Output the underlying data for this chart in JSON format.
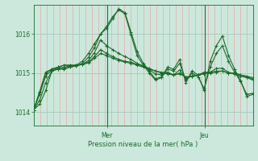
{
  "title": "Pression niveau de la mer( hPa )",
  "bg_color": "#cce8dc",
  "plot_bg_color": "#cce8dc",
  "line_color": "#1a6b2a",
  "grid_color_h": "#a8c8bc",
  "grid_color_v": "#e8a8a8",
  "day_line_color": "#2a6a3a",
  "ylim": [
    1013.65,
    1016.75
  ],
  "yticks": [
    1014,
    1015,
    1016
  ],
  "day_positions": [
    0.335,
    0.78
  ],
  "day_labels": [
    "Mer",
    "Jeu"
  ],
  "n_points": 37,
  "series": [
    [
      1014.05,
      1014.2,
      1014.55,
      1015.05,
      1015.1,
      1015.1,
      1015.15,
      1015.2,
      1015.3,
      1015.5,
      1015.75,
      1016.0,
      1016.15,
      1016.4,
      1016.65,
      1016.55,
      1016.05,
      1015.55,
      1015.25,
      1015.05,
      1014.85,
      1014.9,
      1015.15,
      1015.1,
      1015.35,
      1014.75,
      1015.05,
      1014.95,
      1014.55,
      1015.3,
      1015.7,
      1015.95,
      1015.45,
      1015.1,
      1014.8,
      1014.4,
      1014.45
    ],
    [
      1014.05,
      1014.3,
      1014.75,
      1015.05,
      1015.1,
      1015.12,
      1015.15,
      1015.18,
      1015.25,
      1015.4,
      1015.65,
      1016.0,
      1016.2,
      1016.45,
      1016.62,
      1016.52,
      1015.98,
      1015.45,
      1015.2,
      1015.0,
      1014.82,
      1014.88,
      1015.1,
      1015.05,
      1015.25,
      1014.8,
      1015.0,
      1014.9,
      1014.6,
      1015.15,
      1015.5,
      1015.7,
      1015.3,
      1015.02,
      1014.78,
      1014.45,
      1014.48
    ],
    [
      1014.05,
      1014.45,
      1014.92,
      1015.08,
      1015.12,
      1015.15,
      1015.18,
      1015.18,
      1015.22,
      1015.32,
      1015.52,
      1015.85,
      1015.7,
      1015.6,
      1015.5,
      1015.42,
      1015.35,
      1015.25,
      1015.18,
      1015.08,
      1014.98,
      1014.95,
      1015.02,
      1014.95,
      1015.08,
      1014.85,
      1014.92,
      1014.95,
      1015.02,
      1015.02,
      1015.12,
      1015.12,
      1015.02,
      1014.98,
      1014.92,
      1014.88,
      1014.82
    ],
    [
      1014.05,
      1014.5,
      1015.0,
      1015.1,
      1015.15,
      1015.2,
      1015.2,
      1015.2,
      1015.22,
      1015.28,
      1015.42,
      1015.6,
      1015.5,
      1015.42,
      1015.35,
      1015.3,
      1015.28,
      1015.22,
      1015.18,
      1015.12,
      1015.05,
      1015.0,
      1014.98,
      1014.95,
      1015.0,
      1014.88,
      1014.92,
      1014.95,
      1015.0,
      1015.02,
      1015.05,
      1015.05,
      1015.0,
      1015.0,
      1014.95,
      1014.9,
      1014.85
    ],
    [
      1014.05,
      1014.52,
      1015.02,
      1015.1,
      1015.15,
      1015.2,
      1015.2,
      1015.2,
      1015.22,
      1015.26,
      1015.38,
      1015.5,
      1015.45,
      1015.38,
      1015.32,
      1015.28,
      1015.25,
      1015.2,
      1015.15,
      1015.1,
      1015.05,
      1015.02,
      1015.0,
      1014.95,
      1014.98,
      1014.9,
      1014.92,
      1014.95,
      1014.98,
      1015.0,
      1015.02,
      1015.05,
      1015.0,
      1014.98,
      1014.95,
      1014.92,
      1014.88
    ]
  ]
}
